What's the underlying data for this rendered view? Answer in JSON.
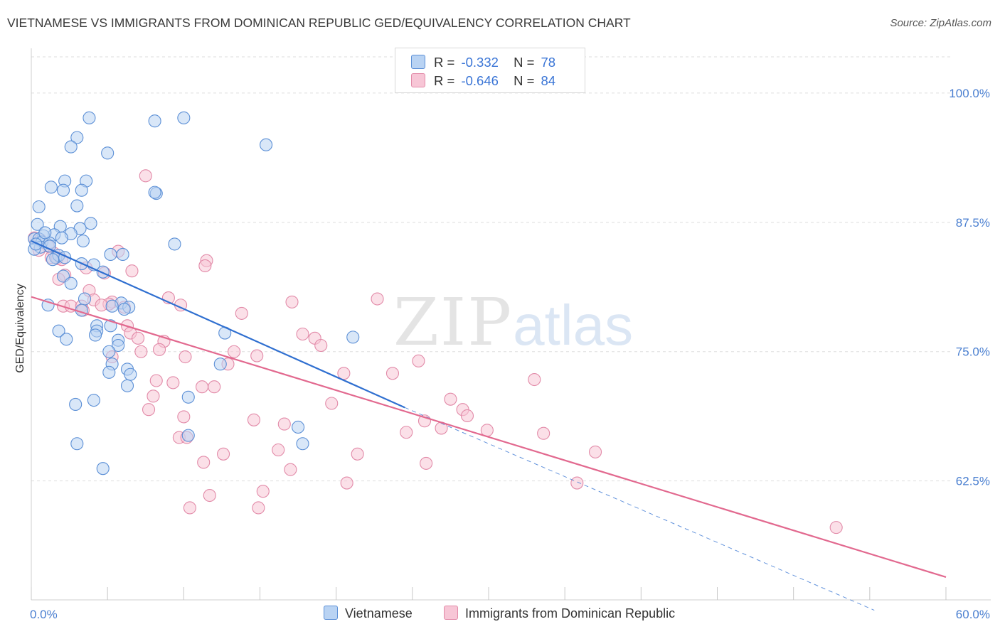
{
  "header": {
    "title": "VIETNAMESE VS IMMIGRANTS FROM DOMINICAN REPUBLIC GED/EQUIVALENCY CORRELATION CHART",
    "source": "Source: ZipAtlas.com"
  },
  "legend": {
    "rows": [
      {
        "r_label": "R =",
        "r_value": "-0.332",
        "n_label": "N =",
        "n_value": "78"
      },
      {
        "r_label": "R =",
        "r_value": "-0.646",
        "n_label": "N =",
        "n_value": "84"
      }
    ]
  },
  "watermark": {
    "zip": "ZIP",
    "atlas": "atlas"
  },
  "colors": {
    "vietnamese_fill": "#b9d3f3",
    "vietnamese_stroke": "#5b8fd6",
    "vietnamese_line": "#2f6fd0",
    "dominican_fill": "#f7c6d6",
    "dominican_stroke": "#e28aa8",
    "dominican_line": "#e2698f",
    "axis_label": "#4a7fd0",
    "grid": "#dedede"
  },
  "chart_data": {
    "type": "scatter",
    "title": "VIETNAMESE VS IMMIGRANTS FROM DOMINICAN REPUBLIC GED/EQUIVALENCY CORRELATION CHART",
    "xlabel": "",
    "ylabel": "GED/Equivalency",
    "xlim": [
      0,
      60
    ],
    "ylim": [
      51.0,
      103.5
    ],
    "x_tick_labels": [
      "0.0%",
      "60.0%"
    ],
    "y_ticks": [
      62.5,
      75.0,
      87.5,
      100.0
    ],
    "y_tick_labels": [
      "62.5%",
      "75.0%",
      "87.5%",
      "100.0%"
    ],
    "grid": true,
    "legend_position": "top-center",
    "series": [
      {
        "name": "Vietnamese",
        "R": -0.332,
        "N": 78,
        "trend": {
          "x": [
            0.0,
            24.5
          ],
          "y": [
            85.7,
            69.6
          ],
          "dashed_to": {
            "x": 55.3,
            "y": 50.0
          }
        },
        "points": [
          [
            3.8,
            97.6
          ],
          [
            3.0,
            95.7
          ],
          [
            2.6,
            94.8
          ],
          [
            5.0,
            94.2
          ],
          [
            3.6,
            91.5
          ],
          [
            2.2,
            91.5
          ],
          [
            1.3,
            90.9
          ],
          [
            2.1,
            90.6
          ],
          [
            3.3,
            90.6
          ],
          [
            8.2,
            90.3
          ],
          [
            8.1,
            97.3
          ],
          [
            10.0,
            97.6
          ],
          [
            15.4,
            95.0
          ],
          [
            8.1,
            90.4
          ],
          [
            0.5,
            89.0
          ],
          [
            3.0,
            89.1
          ],
          [
            0.4,
            87.3
          ],
          [
            1.9,
            87.1
          ],
          [
            3.9,
            87.4
          ],
          [
            3.2,
            86.9
          ],
          [
            1.5,
            86.3
          ],
          [
            0.8,
            86.2
          ],
          [
            2.6,
            86.4
          ],
          [
            0.2,
            85.9
          ],
          [
            0.5,
            85.9
          ],
          [
            0.7,
            85.6
          ],
          [
            1.2,
            85.5
          ],
          [
            0.6,
            85.1
          ],
          [
            0.2,
            84.9
          ],
          [
            3.4,
            85.7
          ],
          [
            9.4,
            85.4
          ],
          [
            5.2,
            84.4
          ],
          [
            6.0,
            84.4
          ],
          [
            1.6,
            84.1
          ],
          [
            1.8,
            84.3
          ],
          [
            1.4,
            83.9
          ],
          [
            2.2,
            84.1
          ],
          [
            3.3,
            83.5
          ],
          [
            4.1,
            83.4
          ],
          [
            4.7,
            82.7
          ],
          [
            2.1,
            82.3
          ],
          [
            2.6,
            81.6
          ],
          [
            3.5,
            80.1
          ],
          [
            1.1,
            79.5
          ],
          [
            3.3,
            79.0
          ],
          [
            5.9,
            79.7
          ],
          [
            5.3,
            79.4
          ],
          [
            6.4,
            79.3
          ],
          [
            6.1,
            79.1
          ],
          [
            4.3,
            77.5
          ],
          [
            5.2,
            77.5
          ],
          [
            4.3,
            77.0
          ],
          [
            1.8,
            77.0
          ],
          [
            4.2,
            76.6
          ],
          [
            2.3,
            76.2
          ],
          [
            5.7,
            76.1
          ],
          [
            5.7,
            75.6
          ],
          [
            5.1,
            75.0
          ],
          [
            5.3,
            73.8
          ],
          [
            6.3,
            73.3
          ],
          [
            6.5,
            72.8
          ],
          [
            6.3,
            71.7
          ],
          [
            10.3,
            70.6
          ],
          [
            12.7,
            76.8
          ],
          [
            12.4,
            73.8
          ],
          [
            21.1,
            76.4
          ],
          [
            4.1,
            70.3
          ],
          [
            2.9,
            69.9
          ],
          [
            17.5,
            67.7
          ],
          [
            17.8,
            66.1
          ],
          [
            10.3,
            66.9
          ],
          [
            3.0,
            66.1
          ],
          [
            4.7,
            63.7
          ],
          [
            5.1,
            73.0
          ],
          [
            0.9,
            86.5
          ],
          [
            2.0,
            86.0
          ],
          [
            0.3,
            85.4
          ],
          [
            1.2,
            85.2
          ]
        ]
      },
      {
        "name": "Immigrants from Dominican Republic",
        "R": -0.646,
        "N": 84,
        "trend": {
          "x": [
            0.0,
            60.0
          ],
          "y": [
            80.3,
            53.2
          ]
        },
        "points": [
          [
            7.5,
            92.0
          ],
          [
            0.2,
            86.0
          ],
          [
            0.6,
            85.8
          ],
          [
            1.1,
            85.2
          ],
          [
            0.5,
            84.8
          ],
          [
            1.5,
            84.5
          ],
          [
            1.3,
            84.1
          ],
          [
            1.7,
            84.0
          ],
          [
            2.0,
            83.9
          ],
          [
            5.7,
            84.7
          ],
          [
            11.5,
            83.8
          ],
          [
            11.4,
            83.3
          ],
          [
            3.6,
            83.1
          ],
          [
            6.6,
            82.8
          ],
          [
            4.8,
            82.6
          ],
          [
            2.2,
            82.4
          ],
          [
            1.8,
            82.0
          ],
          [
            3.8,
            80.9
          ],
          [
            9.0,
            80.2
          ],
          [
            4.1,
            80.0
          ],
          [
            5.3,
            79.8
          ],
          [
            5.1,
            79.6
          ],
          [
            9.8,
            79.5
          ],
          [
            2.1,
            79.4
          ],
          [
            2.6,
            79.4
          ],
          [
            3.3,
            79.4
          ],
          [
            4.6,
            79.5
          ],
          [
            3.4,
            79.0
          ],
          [
            6.1,
            79.3
          ],
          [
            13.8,
            78.7
          ],
          [
            17.1,
            79.8
          ],
          [
            22.7,
            80.1
          ],
          [
            6.3,
            77.5
          ],
          [
            6.5,
            76.8
          ],
          [
            7.0,
            76.3
          ],
          [
            8.7,
            76.0
          ],
          [
            17.8,
            76.7
          ],
          [
            18.6,
            76.3
          ],
          [
            19.0,
            75.6
          ],
          [
            8.4,
            75.2
          ],
          [
            7.2,
            75.0
          ],
          [
            13.3,
            75.0
          ],
          [
            14.8,
            74.6
          ],
          [
            10.1,
            74.5
          ],
          [
            5.3,
            74.5
          ],
          [
            12.9,
            73.8
          ],
          [
            25.4,
            74.1
          ],
          [
            20.5,
            72.9
          ],
          [
            23.7,
            72.9
          ],
          [
            33.0,
            72.3
          ],
          [
            8.2,
            72.2
          ],
          [
            9.3,
            72.0
          ],
          [
            11.2,
            71.6
          ],
          [
            12.0,
            71.6
          ],
          [
            8.0,
            70.7
          ],
          [
            7.7,
            69.4
          ],
          [
            27.5,
            70.4
          ],
          [
            19.7,
            70.0
          ],
          [
            28.3,
            69.4
          ],
          [
            28.6,
            68.8
          ],
          [
            10.0,
            68.7
          ],
          [
            14.6,
            68.4
          ],
          [
            16.6,
            68.0
          ],
          [
            25.8,
            68.3
          ],
          [
            26.9,
            67.6
          ],
          [
            29.9,
            67.4
          ],
          [
            33.6,
            67.1
          ],
          [
            24.6,
            67.2
          ],
          [
            9.7,
            66.7
          ],
          [
            10.2,
            66.7
          ],
          [
            16.2,
            65.5
          ],
          [
            21.4,
            65.1
          ],
          [
            12.6,
            65.1
          ],
          [
            37.0,
            65.3
          ],
          [
            11.3,
            64.3
          ],
          [
            25.9,
            64.2
          ],
          [
            17.0,
            63.6
          ],
          [
            20.7,
            62.3
          ],
          [
            35.8,
            62.3
          ],
          [
            15.2,
            61.5
          ],
          [
            11.7,
            61.1
          ],
          [
            14.9,
            59.9
          ],
          [
            10.4,
            59.9
          ],
          [
            52.8,
            58.0
          ]
        ]
      }
    ]
  },
  "bottom_legend": {
    "items": [
      "Vietnamese",
      "Immigrants from Dominican Republic"
    ]
  }
}
